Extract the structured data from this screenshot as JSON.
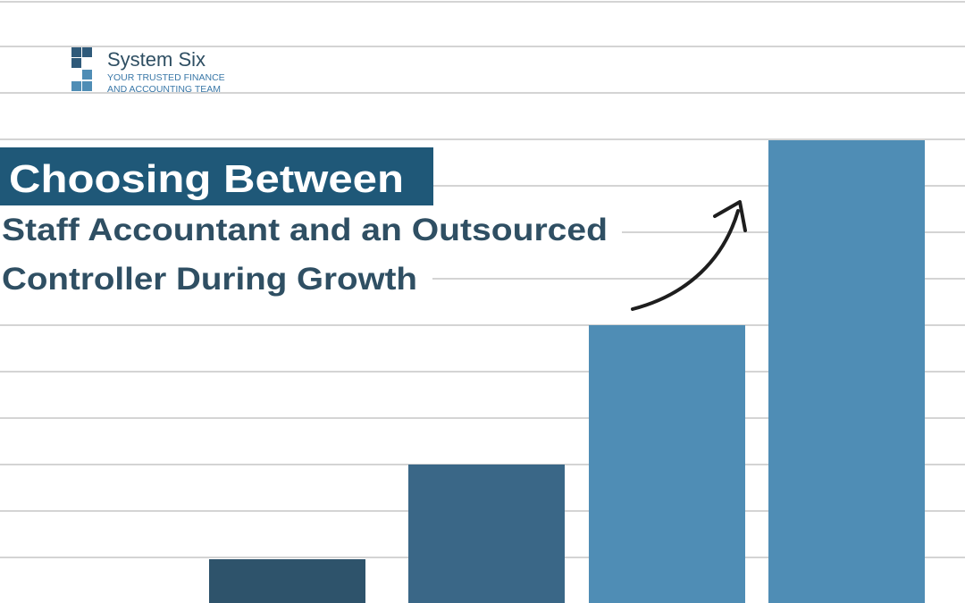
{
  "logo": {
    "name": "System Six",
    "tagline_1": "YOUR TRUSTED FINANCE",
    "tagline_2": "AND ACCOUNTING TEAM"
  },
  "headline": {
    "line_1": "Choosing Between",
    "line_2": "Staff Accountant and an Outsourced",
    "line_3": "Controller During Growth"
  }
}
